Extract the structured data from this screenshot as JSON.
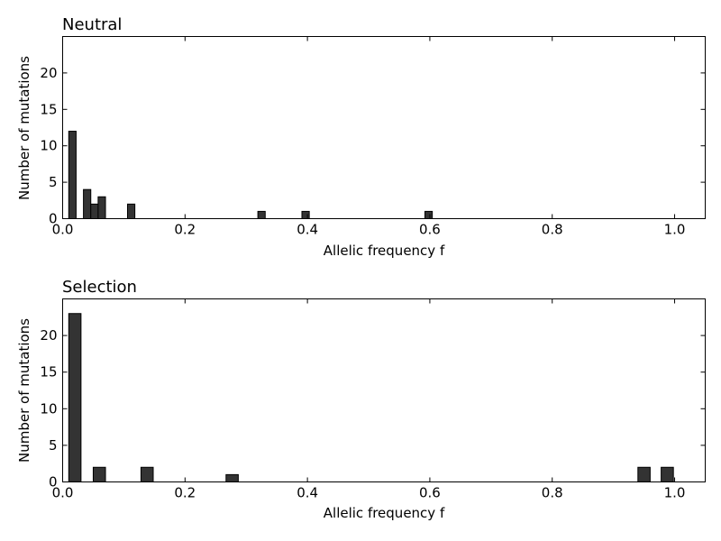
{
  "chart_data": [
    {
      "type": "bar",
      "title": "Neutral",
      "xlabel": "Allelic frequency f",
      "ylabel": "Number of mutations",
      "xlim": [
        0.0,
        1.05
      ],
      "ylim": [
        0,
        25
      ],
      "xticks": [
        "0.0",
        "0.2",
        "0.4",
        "0.6",
        "0.8",
        "1.0"
      ],
      "yticks": [
        "0",
        "5",
        "10",
        "15",
        "20"
      ],
      "bar_width": 0.012,
      "x": [
        0.016,
        0.04,
        0.052,
        0.064,
        0.112,
        0.325,
        0.397,
        0.598
      ],
      "values": [
        12,
        4,
        2,
        3,
        2,
        1,
        1,
        1
      ],
      "bar_color": "#333333"
    },
    {
      "type": "bar",
      "title": "Selection",
      "xlabel": "Allelic frequency f",
      "ylabel": "Number of mutations",
      "xlim": [
        0.0,
        1.05
      ],
      "ylim": [
        0,
        25
      ],
      "xticks": [
        "0.0",
        "0.2",
        "0.4",
        "0.6",
        "0.8",
        "1.0"
      ],
      "yticks": [
        "0",
        "5",
        "10",
        "15",
        "20"
      ],
      "bar_width": 0.02,
      "x": [
        0.02,
        0.06,
        0.138,
        0.277,
        0.95,
        0.988
      ],
      "values": [
        23,
        2,
        2,
        1,
        2,
        2
      ],
      "bar_color": "#333333"
    }
  ]
}
